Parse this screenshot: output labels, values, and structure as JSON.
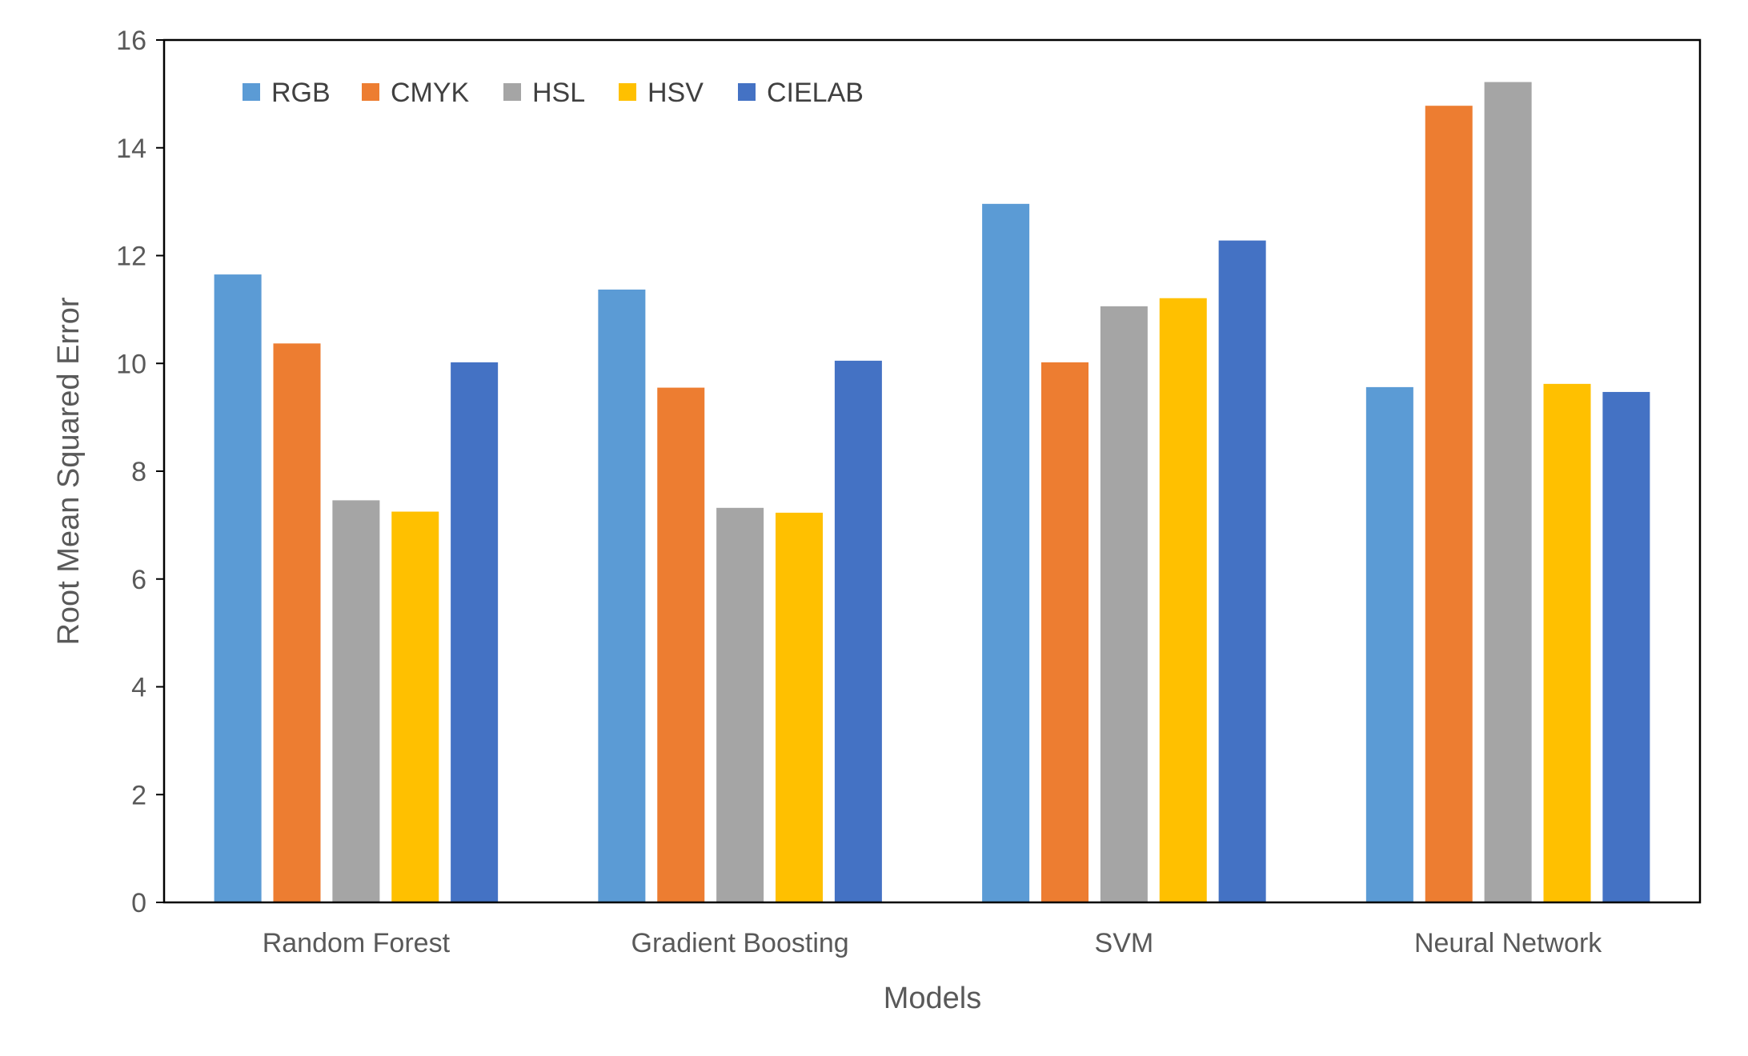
{
  "chart_data": {
    "type": "bar",
    "title": "",
    "xlabel": "Models",
    "ylabel": "Root Mean Squared Error",
    "categories": [
      "Random Forest",
      "Gradient Boosting",
      "SVM",
      "Neural Network"
    ],
    "ylim": [
      0,
      16
    ],
    "yticks": [
      0,
      2,
      4,
      6,
      8,
      10,
      12,
      14,
      16
    ],
    "grid": false,
    "legend_position": "top-left",
    "series": [
      {
        "name": "RGB",
        "color": "#5B9BD5",
        "values": [
          11.65,
          11.37,
          12.96,
          9.56
        ]
      },
      {
        "name": "CMYK",
        "color": "#ED7D31",
        "values": [
          10.37,
          9.55,
          10.02,
          14.78
        ]
      },
      {
        "name": "HSL",
        "color": "#A5A5A5",
        "values": [
          7.46,
          7.32,
          11.06,
          15.22
        ]
      },
      {
        "name": "HSV",
        "color": "#FFC000",
        "values": [
          7.25,
          7.23,
          11.21,
          9.62
        ]
      },
      {
        "name": "CIELAB",
        "color": "#4472C4",
        "values": [
          10.02,
          10.05,
          12.28,
          9.47
        ]
      }
    ]
  }
}
